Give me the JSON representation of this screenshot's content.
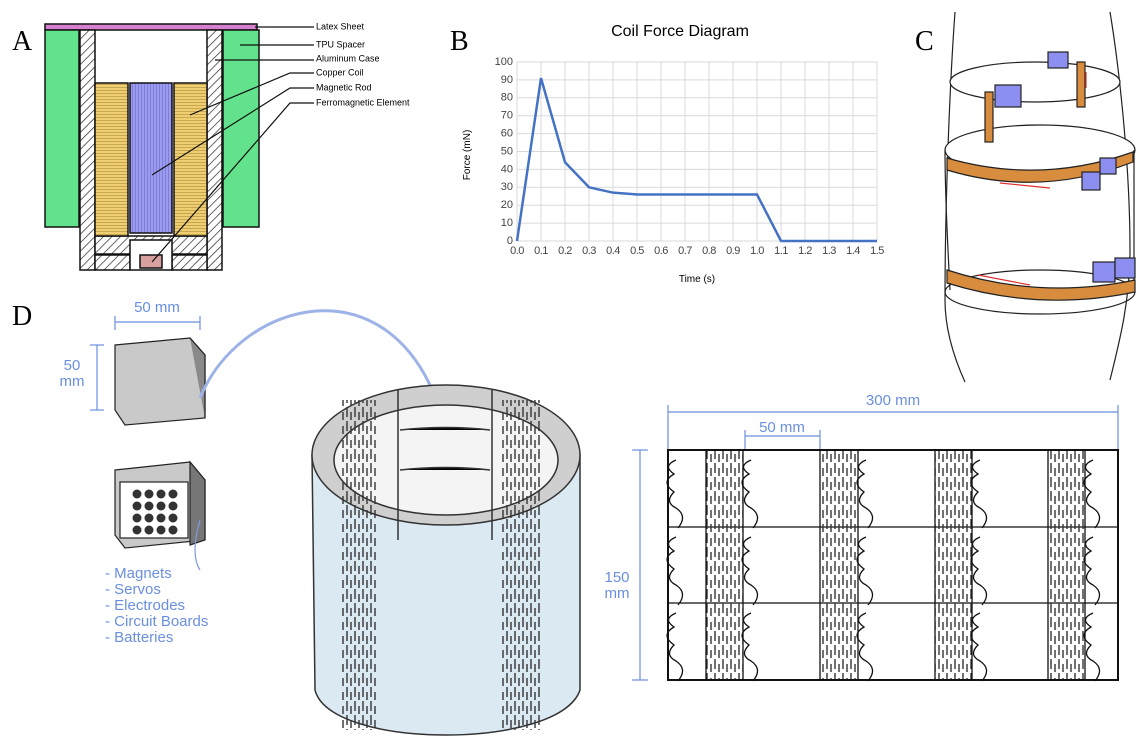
{
  "panels": {
    "a": {
      "letter": "A",
      "labels": [
        "Latex Sheet",
        "TPU Spacer",
        "Aluminum Case",
        "Copper Coil",
        "Magnetic Rod",
        "Ferromagnetic Element"
      ]
    },
    "b": {
      "letter": "B"
    },
    "c": {
      "letter": "C"
    },
    "d": {
      "letter": "D",
      "module_width": "50 mm",
      "module_height": [
        "50",
        "mm"
      ],
      "contents": [
        "- Magnets",
        "- Servos",
        "- Electrodes",
        "- Circuit Boards",
        "- Batteries"
      ],
      "panel_width": "300 mm",
      "tile_width": "50 mm",
      "panel_height": [
        "150",
        "mm"
      ]
    }
  },
  "chart_data": {
    "type": "line",
    "title": "Coil Force Diagram",
    "x_label": "Time (s)",
    "y_label": "Force (mN)",
    "x": [
      0,
      0.1,
      0.2,
      0.3,
      0.4,
      0.5,
      0.6,
      0.7,
      0.8,
      0.9,
      1.0,
      1.1,
      1.2,
      1.3,
      1.4,
      1.5
    ],
    "values": [
      0,
      91,
      44,
      30,
      27,
      26,
      26,
      26,
      26,
      26,
      26,
      0,
      0,
      0,
      0,
      0
    ],
    "color": "#4472c4",
    "xlim": [
      0,
      1.5
    ],
    "xticks": [
      {
        "value": 0,
        "label": "0.0"
      },
      0.1,
      0.2,
      0.3,
      0.4,
      0.5,
      0.6,
      0.7,
      0.8,
      0.9,
      {
        "value": 1,
        "label": "1.0"
      },
      1.1,
      1.2,
      1.3,
      1.4,
      1.5
    ],
    "ylim": [
      0,
      100
    ],
    "yticks": [
      0,
      10,
      20,
      30,
      40,
      50,
      60,
      70,
      80,
      90,
      100
    ],
    "grid": true
  }
}
